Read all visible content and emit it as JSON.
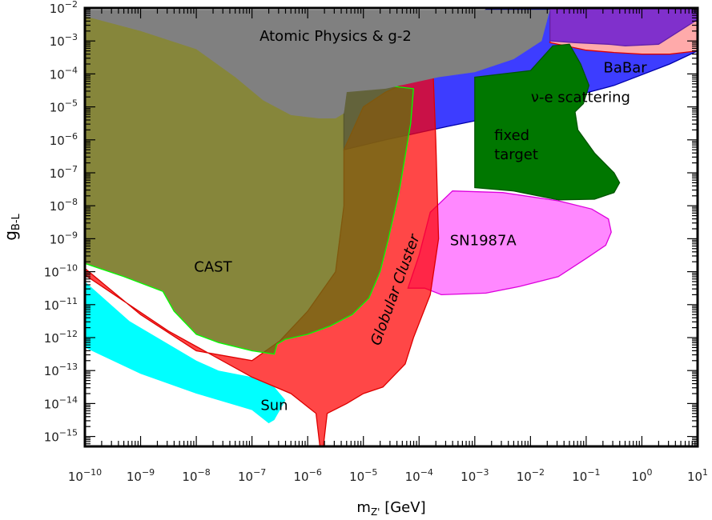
{
  "chart_data": {
    "type": "area",
    "x_scale": "log",
    "y_scale": "log",
    "xlim": [
      1e-10,
      10
    ],
    "ylim": [
      5e-16,
      0.01
    ],
    "grid": false,
    "xlabel": "m",
    "xlabel_sub": "Z'",
    "xlabel_unit": " [GeV]",
    "ylabel": "g",
    "ylabel_sub": "B-L",
    "x_ticks": [
      {
        "base": "10",
        "exp": "−10",
        "value": -10
      },
      {
        "base": "10",
        "exp": "−9",
        "value": -9
      },
      {
        "base": "10",
        "exp": "−8",
        "value": -8
      },
      {
        "base": "10",
        "exp": "−7",
        "value": -7
      },
      {
        "base": "10",
        "exp": "−6",
        "value": -6
      },
      {
        "base": "10",
        "exp": "−5",
        "value": -5
      },
      {
        "base": "10",
        "exp": "−4",
        "value": -4
      },
      {
        "base": "10",
        "exp": "−3",
        "value": -3
      },
      {
        "base": "10",
        "exp": "−2",
        "value": -2
      },
      {
        "base": "10",
        "exp": "−1",
        "value": -1
      },
      {
        "base": "10",
        "exp": "0",
        "value": 0
      },
      {
        "base": "10",
        "exp": "1",
        "value": 1
      }
    ],
    "y_ticks": [
      {
        "base": "10",
        "exp": "−2",
        "value": -2
      },
      {
        "base": "10",
        "exp": "−3",
        "value": -3
      },
      {
        "base": "10",
        "exp": "−4",
        "value": -4
      },
      {
        "base": "10",
        "exp": "−5",
        "value": -5
      },
      {
        "base": "10",
        "exp": "−6",
        "value": -6
      },
      {
        "base": "10",
        "exp": "−7",
        "value": -7
      },
      {
        "base": "10",
        "exp": "−8",
        "value": -8
      },
      {
        "base": "10",
        "exp": "−9",
        "value": -9
      },
      {
        "base": "10",
        "exp": "−10",
        "value": -10
      },
      {
        "base": "10",
        "exp": "−11",
        "value": -11
      },
      {
        "base": "10",
        "exp": "−12",
        "value": -12
      },
      {
        "base": "10",
        "exp": "−13",
        "value": -13
      },
      {
        "base": "10",
        "exp": "−14",
        "value": -14
      },
      {
        "base": "10",
        "exp": "−15",
        "value": -15
      }
    ],
    "regions": [
      {
        "id": "sun",
        "label": "Sun",
        "label_at": [
          -6.6,
          -14.2
        ],
        "fill": "#00ffff",
        "opacity": 1,
        "stroke": "none",
        "points": [
          [
            -10,
            -10
          ],
          [
            -10,
            -10.3
          ],
          [
            -9.2,
            -11.5
          ],
          [
            -8,
            -12.7
          ],
          [
            -7.6,
            -13
          ],
          [
            -7,
            -13.2
          ],
          [
            -6.6,
            -13.5
          ],
          [
            -6.4,
            -13.9
          ],
          [
            -6.6,
            -14.5
          ],
          [
            -6.7,
            -14.6
          ],
          [
            -7,
            -14.2
          ],
          [
            -8,
            -13.7
          ],
          [
            -9,
            -13.1
          ],
          [
            -10,
            -12.3
          ]
        ]
      },
      {
        "id": "nu-e-scattering",
        "label": "ν-e scattering",
        "label_at": [
          -1.1,
          -4.85
        ],
        "label_color": "#0000dd",
        "fill": "#3333ff",
        "opacity": 0.95,
        "stroke": "#0000aa",
        "points": [
          [
            -5.35,
            -6.3
          ],
          [
            -4.6,
            -6.0
          ],
          [
            -3.5,
            -5.6
          ],
          [
            -2.5,
            -5.25
          ],
          [
            -1.5,
            -4.8
          ],
          [
            -0.5,
            -4.35
          ],
          [
            0.5,
            -3.7
          ],
          [
            1,
            -3.3
          ],
          [
            1,
            -2.05
          ],
          [
            -2.8,
            -2.05
          ],
          [
            -5.35,
            -4.3
          ]
        ]
      },
      {
        "id": "babar",
        "label": "BaBar",
        "label_at": [
          -0.3,
          -3.95
        ],
        "fill": "#ffaaaa",
        "opacity": 1,
        "stroke": "#dd0000",
        "points": [
          [
            -1.65,
            -3.05
          ],
          [
            -1.0,
            -3.28
          ],
          [
            -0.5,
            -3.35
          ],
          [
            0,
            -3.4
          ],
          [
            0.5,
            -3.4
          ],
          [
            1,
            -3.3
          ],
          [
            1,
            -2.3
          ],
          [
            -1.65,
            -2.3
          ]
        ]
      },
      {
        "id": "dark-purple",
        "label": "",
        "fill": "#8030cc",
        "opacity": 1,
        "stroke": "#6020aa",
        "points": [
          [
            -1.65,
            -2.1
          ],
          [
            -1.65,
            -3.0
          ],
          [
            -1.2,
            -3.05
          ],
          [
            -0.6,
            -3.1
          ],
          [
            -0.3,
            -3.15
          ],
          [
            0.3,
            -3.1
          ],
          [
            1,
            -2.35
          ],
          [
            1,
            -2.0
          ],
          [
            -1.65,
            -2.0
          ]
        ]
      },
      {
        "id": "fixed-target",
        "label": "fixed",
        "label2": "target",
        "label_at": [
          -2.65,
          -6.0
        ],
        "fill": "#007700",
        "opacity": 1,
        "stroke": "#005500",
        "points": [
          [
            -3,
            -4.1
          ],
          [
            -2.0,
            -3.9
          ],
          [
            -1.6,
            -3.15
          ],
          [
            -1.3,
            -3.1
          ],
          [
            -1.1,
            -3.7
          ],
          [
            -0.95,
            -4.35
          ],
          [
            -1.05,
            -4.9
          ],
          [
            -1.2,
            -5.15
          ],
          [
            -1.15,
            -5.7
          ],
          [
            -0.85,
            -6.4
          ],
          [
            -0.5,
            -7.0
          ],
          [
            -0.4,
            -7.3
          ],
          [
            -0.5,
            -7.6
          ],
          [
            -0.85,
            -7.8
          ],
          [
            -1.5,
            -7.82
          ],
          [
            -2.3,
            -7.55
          ],
          [
            -3,
            -7.45
          ]
        ]
      },
      {
        "id": "sn1987a",
        "label": "SN1987A",
        "label_at": [
          -2.85,
          -9.2
        ],
        "fill": "#ff88ff",
        "opacity": 1,
        "stroke": "#dd00dd",
        "points": [
          [
            -3.4,
            -7.55
          ],
          [
            -2.5,
            -7.6
          ],
          [
            -1.5,
            -7.85
          ],
          [
            -0.9,
            -8.1
          ],
          [
            -0.6,
            -8.4
          ],
          [
            -0.55,
            -8.8
          ],
          [
            -0.65,
            -9.2
          ],
          [
            -1.0,
            -9.6
          ],
          [
            -1.5,
            -10.15
          ],
          [
            -2.2,
            -10.45
          ],
          [
            -2.8,
            -10.65
          ],
          [
            -3.6,
            -10.7
          ],
          [
            -3.9,
            -10.5
          ],
          [
            -4.2,
            -10.5
          ],
          [
            -4.0,
            -9.5
          ],
          [
            -3.8,
            -8.2
          ]
        ]
      },
      {
        "id": "globular-cluster",
        "label": "Globular Cluster",
        "label_rotate": -70,
        "label_at": [
          -4.35,
          -10.6
        ],
        "fill": "#ff0000",
        "opacity": 0.72,
        "stroke": "#dd0000",
        "points": [
          [
            -10,
            -10
          ],
          [
            -10,
            -10.1
          ],
          [
            -8.5,
            -11.8
          ],
          [
            -7,
            -13.2
          ],
          [
            -6.3,
            -13.7
          ],
          [
            -5.85,
            -14.3
          ],
          [
            -5.75,
            -15.75
          ],
          [
            -5.65,
            -14.3
          ],
          [
            -5.3,
            -14.0
          ],
          [
            -5.0,
            -13.7
          ],
          [
            -4.65,
            -13.5
          ],
          [
            -4.25,
            -12.8
          ],
          [
            -4.1,
            -12.0
          ],
          [
            -3.8,
            -10.7
          ],
          [
            -3.65,
            -9.0
          ],
          [
            -3.7,
            -6.0
          ],
          [
            -3.75,
            -3.9
          ],
          [
            -4.6,
            -4.55
          ],
          [
            -5.0,
            -5.0
          ],
          [
            -5.35,
            -6.3
          ],
          [
            -5.35,
            -8.0
          ],
          [
            -5.5,
            -10.0
          ],
          [
            -6,
            -11.2
          ],
          [
            -6.5,
            -12.1
          ],
          [
            -7,
            -12.7
          ],
          [
            -8,
            -12.4
          ],
          [
            -9,
            -11.3
          ],
          [
            -10,
            -9.9
          ]
        ]
      },
      {
        "id": "cast",
        "label": "CAST",
        "label_at": [
          -7.7,
          -10.0
        ],
        "fill": "#6b6b10",
        "opacity": 0.82,
        "stroke": "#00ff00",
        "points": [
          [
            -10,
            -9.75
          ],
          [
            -9.3,
            -10.15
          ],
          [
            -8.6,
            -10.6
          ],
          [
            -8.4,
            -11.2
          ],
          [
            -8.0,
            -11.9
          ],
          [
            -7.6,
            -12.15
          ],
          [
            -7.0,
            -12.4
          ],
          [
            -6.6,
            -12.5
          ],
          [
            -6.55,
            -12.2
          ],
          [
            -6.4,
            -12.05
          ],
          [
            -6.0,
            -11.9
          ],
          [
            -5.6,
            -11.65
          ],
          [
            -5.2,
            -11.3
          ],
          [
            -4.9,
            -10.8
          ],
          [
            -4.7,
            -10.0
          ],
          [
            -4.55,
            -9.0
          ],
          [
            -4.35,
            -7.5
          ],
          [
            -4.15,
            -5.5
          ],
          [
            -4.1,
            -4.45
          ],
          [
            -5.3,
            -4.2
          ],
          [
            -10,
            -2.1
          ]
        ]
      },
      {
        "id": "atomic-physics",
        "label": "Atomic Physics & g-2",
        "label_at": [
          -5.5,
          -3.0
        ],
        "fill": "#808080",
        "opacity": 1,
        "stroke": "none",
        "points": [
          [
            -10,
            -2.05
          ],
          [
            -10,
            -2.25
          ],
          [
            -9.0,
            -2.7
          ],
          [
            -8.0,
            -3.25
          ],
          [
            -7.3,
            -4.1
          ],
          [
            -6.8,
            -4.8
          ],
          [
            -6.3,
            -5.25
          ],
          [
            -5.8,
            -5.35
          ],
          [
            -5.5,
            -5.35
          ],
          [
            -5.35,
            -5.2
          ],
          [
            -5.3,
            -4.55
          ],
          [
            -4.6,
            -4.45
          ],
          [
            -3.65,
            -4.1
          ],
          [
            -3,
            -3.95
          ],
          [
            -2.3,
            -3.55
          ],
          [
            -1.8,
            -3.0
          ],
          [
            -1.65,
            -2.05
          ]
        ]
      }
    ]
  }
}
